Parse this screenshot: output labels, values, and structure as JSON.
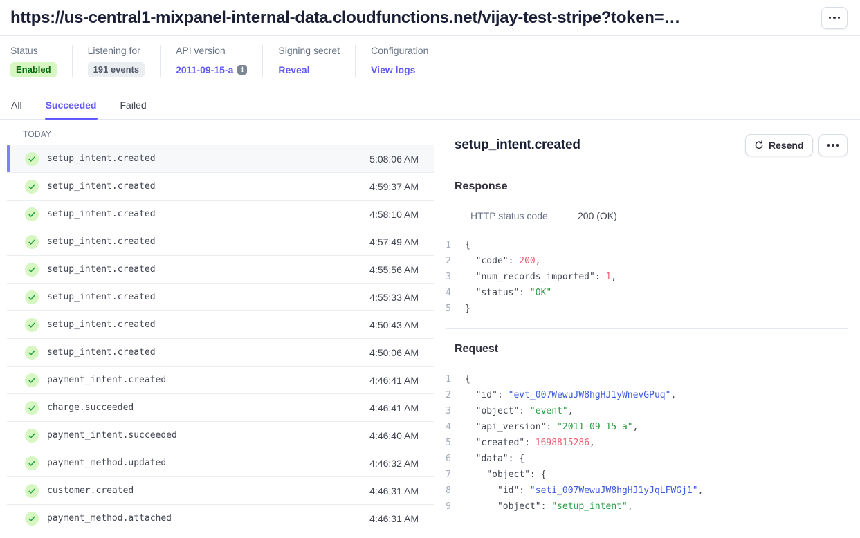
{
  "colors": {
    "accent": "#625afa",
    "heading": "#1a1f36",
    "text": "#414552",
    "muted": "#687385",
    "border": "#e3e8ee",
    "row-border": "#ebeef1",
    "selected-bg": "#f6f8fa",
    "selected-bar": "#7f81fa",
    "badge-green-bg": "#d7f7c2",
    "badge-green-text": "#05690d",
    "badge-gray-bg": "#ebeef1",
    "badge-gray-text": "#545969",
    "btn-border": "#d8dee4",
    "check-bg": "#d7f7c2",
    "check-mark": "#26a248",
    "code-num": "#ed5f74",
    "code-str": "#2f9e44",
    "code-link": "#3b5bdb",
    "line-number": "#a3acba"
  },
  "header": {
    "title": "https://us-central1-mixpanel-internal-data.cloudfunctions.net/vijay-test-stripe?token=…"
  },
  "meta": [
    {
      "label": "Status",
      "value": "Enabled",
      "type": "badge-green"
    },
    {
      "label": "Listening for",
      "value": "191 events",
      "type": "badge-gray"
    },
    {
      "label": "API version",
      "value": "2011-09-15-a",
      "type": "link-info"
    },
    {
      "label": "Signing secret",
      "value": "Reveal",
      "type": "link"
    },
    {
      "label": "Configuration",
      "value": "View logs",
      "type": "link"
    }
  ],
  "tabs": [
    {
      "label": "All",
      "active": false
    },
    {
      "label": "Succeeded",
      "active": true
    },
    {
      "label": "Failed",
      "active": false
    }
  ],
  "event_list": {
    "group_label": "TODAY",
    "items": [
      {
        "name": "setup_intent.created",
        "time": "5:08:06 AM",
        "selected": true
      },
      {
        "name": "setup_intent.created",
        "time": "4:59:37 AM",
        "selected": false
      },
      {
        "name": "setup_intent.created",
        "time": "4:58:10 AM",
        "selected": false
      },
      {
        "name": "setup_intent.created",
        "time": "4:57:49 AM",
        "selected": false
      },
      {
        "name": "setup_intent.created",
        "time": "4:55:56 AM",
        "selected": false
      },
      {
        "name": "setup_intent.created",
        "time": "4:55:33 AM",
        "selected": false
      },
      {
        "name": "setup_intent.created",
        "time": "4:50:43 AM",
        "selected": false
      },
      {
        "name": "setup_intent.created",
        "time": "4:50:06 AM",
        "selected": false
      },
      {
        "name": "payment_intent.created",
        "time": "4:46:41 AM",
        "selected": false
      },
      {
        "name": "charge.succeeded",
        "time": "4:46:41 AM",
        "selected": false
      },
      {
        "name": "payment_intent.succeeded",
        "time": "4:46:40 AM",
        "selected": false
      },
      {
        "name": "payment_method.updated",
        "time": "4:46:32 AM",
        "selected": false
      },
      {
        "name": "customer.created",
        "time": "4:46:31 AM",
        "selected": false
      },
      {
        "name": "payment_method.attached",
        "time": "4:46:31 AM",
        "selected": false
      }
    ]
  },
  "detail": {
    "title": "setup_intent.created",
    "resend_label": "Resend",
    "response": {
      "heading": "Response",
      "status_label": "HTTP status code",
      "status_value": "200 (OK)",
      "code_lines": [
        [
          [
            "p",
            "{"
          ]
        ],
        [
          [
            "p",
            "  \"code\": "
          ],
          [
            "n",
            "200"
          ],
          [
            "p",
            ","
          ]
        ],
        [
          [
            "p",
            "  \"num_records_imported\": "
          ],
          [
            "n",
            "1"
          ],
          [
            "p",
            ","
          ]
        ],
        [
          [
            "p",
            "  \"status\": "
          ],
          [
            "s",
            "\"OK\""
          ]
        ],
        [
          [
            "p",
            "}"
          ]
        ]
      ]
    },
    "request": {
      "heading": "Request",
      "code_lines": [
        [
          [
            "p",
            "{"
          ]
        ],
        [
          [
            "p",
            "  \"id\": "
          ],
          [
            "l",
            "\"evt_007WewuJW8hgHJ1yWnevGPuq\""
          ],
          [
            "p",
            ","
          ]
        ],
        [
          [
            "p",
            "  \"object\": "
          ],
          [
            "s",
            "\"event\""
          ],
          [
            "p",
            ","
          ]
        ],
        [
          [
            "p",
            "  \"api_version\": "
          ],
          [
            "s",
            "\"2011-09-15-a\""
          ],
          [
            "p",
            ","
          ]
        ],
        [
          [
            "p",
            "  \"created\": "
          ],
          [
            "n",
            "1698815286"
          ],
          [
            "p",
            ","
          ]
        ],
        [
          [
            "p",
            "  \"data\": {"
          ]
        ],
        [
          [
            "p",
            "    \"object\": {"
          ]
        ],
        [
          [
            "p",
            "      \"id\": "
          ],
          [
            "l",
            "\"seti_007WewuJW8hgHJ1yJqLFWGj1\""
          ],
          [
            "p",
            ","
          ]
        ],
        [
          [
            "p",
            "      \"object\": "
          ],
          [
            "s",
            "\"setup_intent\""
          ],
          [
            "p",
            ","
          ]
        ]
      ]
    }
  }
}
